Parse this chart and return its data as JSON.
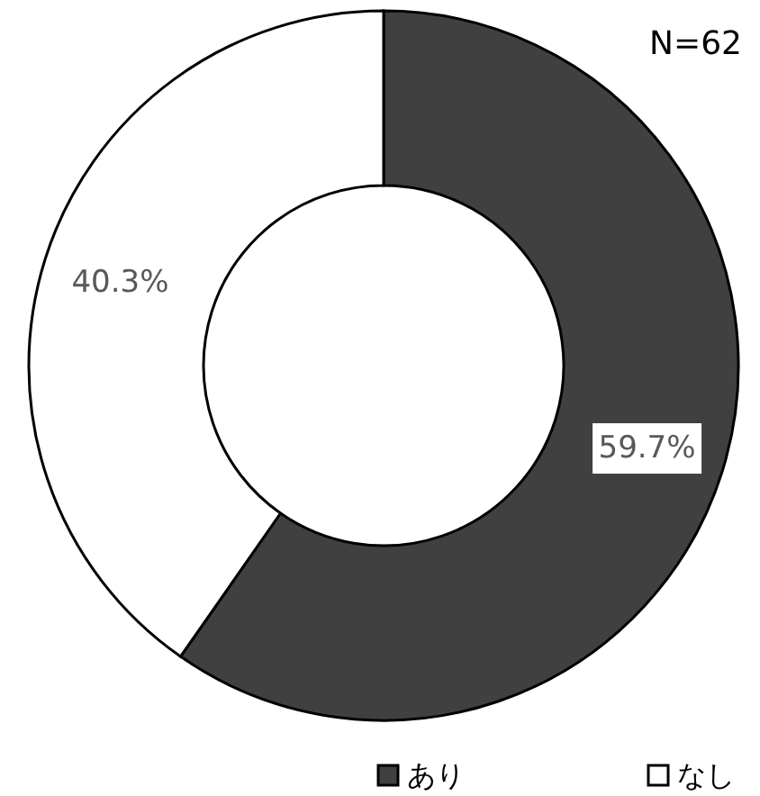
{
  "chart_data": {
    "type": "donut",
    "categories": [
      "あり",
      "なし"
    ],
    "values": [
      59.7,
      40.3
    ],
    "colors": [
      "#404040",
      "#ffffff"
    ],
    "value_labels": [
      "59.7%",
      "40.3%"
    ],
    "legend": "bottom",
    "annotations": [
      "N=62"
    ]
  }
}
